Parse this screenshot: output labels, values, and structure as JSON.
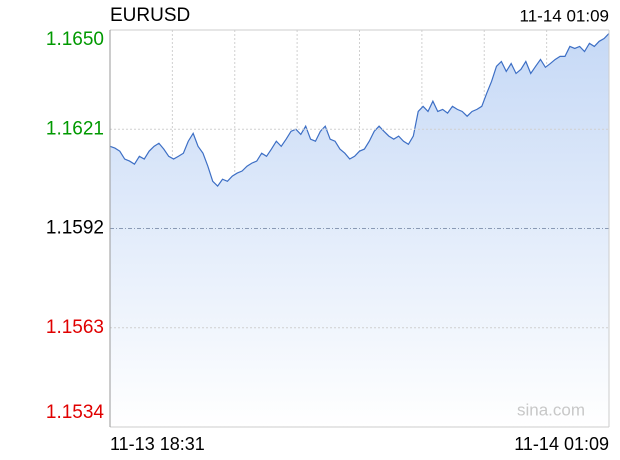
{
  "chart_data": {
    "type": "area-line",
    "title": "EURUSD",
    "time": "11-14 01:09",
    "watermark": "sina.com",
    "x_labels": [
      "11-13 18:31",
      "11-14 01:09"
    ],
    "values": [
      1.1616,
      1.16155,
      1.16146,
      1.16123,
      1.16117,
      1.16108,
      1.16131,
      1.16123,
      1.16146,
      1.1616,
      1.16169,
      1.16152,
      1.16131,
      1.16123,
      1.16131,
      1.1614,
      1.16175,
      1.16198,
      1.1616,
      1.1614,
      1.16102,
      1.16058,
      1.16044,
      1.16064,
      1.16058,
      1.16073,
      1.16082,
      1.16088,
      1.16102,
      1.16111,
      1.16117,
      1.1614,
      1.16131,
      1.16152,
      1.16175,
      1.1616,
      1.16181,
      1.16204,
      1.1621,
      1.16195,
      1.16219,
      1.16181,
      1.16175,
      1.16204,
      1.16219,
      1.16181,
      1.16175,
      1.16152,
      1.1614,
      1.16123,
      1.16131,
      1.16146,
      1.16152,
      1.16175,
      1.16204,
      1.16219,
      1.16204,
      1.1619,
      1.16181,
      1.1619,
      1.16175,
      1.16166,
      1.1619,
      1.16262,
      1.16277,
      1.16262,
      1.16292,
      1.16262,
      1.16268,
      1.16257,
      1.16277,
      1.16268,
      1.16262,
      1.16248,
      1.16262,
      1.16268,
      1.16277,
      1.16315,
      1.1635,
      1.16394,
      1.16408,
      1.16379,
      1.16402,
      1.16373,
      1.16385,
      1.16408,
      1.16373,
      1.16394,
      1.16414,
      1.16391,
      1.16402,
      1.16414,
      1.16423,
      1.16423,
      1.16452,
      1.16446,
      1.16452,
      1.16437,
      1.16461,
      1.16452,
      1.16467,
      1.16475,
      1.1649
    ],
    "color": "#3d6fc5",
    "fill_color": "#c6d9f6",
    "ylim": [
      1.1534,
      1.165
    ],
    "yticks": [
      1.1534,
      1.1563,
      1.1592,
      1.1621,
      {
        "value": 1.165,
        "label": "1.1650"
      }
    ],
    "ytick_colors": [
      "#e00000",
      "#e00000",
      "#000000",
      "#009900",
      "#009900"
    ],
    "grid": true
  }
}
